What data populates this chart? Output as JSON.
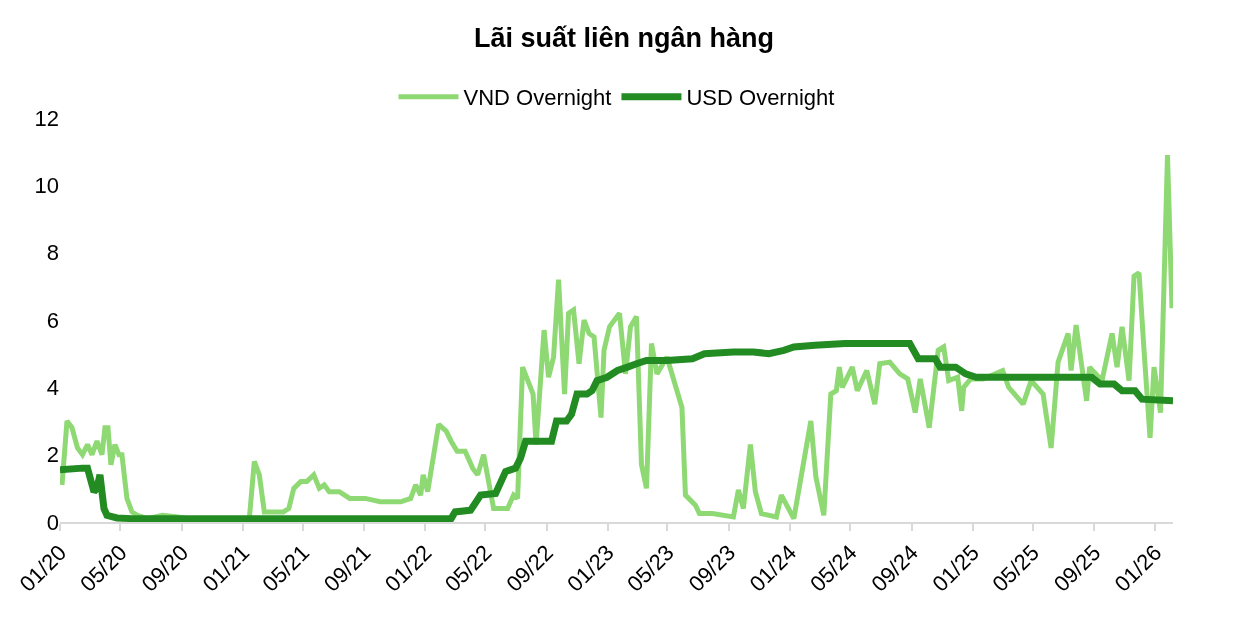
{
  "chart_data": {
    "type": "line",
    "title": "Lãi suất liên ngân hàng",
    "legend": "top",
    "grid": false,
    "marker": "none",
    "line_style": "solid",
    "xlim": [
      "2020-01-01",
      "2026-02-06"
    ],
    "ylim": [
      0,
      12
    ],
    "yticks": [
      0,
      2,
      4,
      6,
      8,
      10,
      12
    ],
    "xticks": [
      {
        "value": "2020-01-01",
        "label": "01/20"
      },
      {
        "value": "2020-05-01",
        "label": "05/20"
      },
      {
        "value": "2020-09-01",
        "label": "09/20"
      },
      {
        "value": "2021-01-01",
        "label": "01/21"
      },
      {
        "value": "2021-05-01",
        "label": "05/21"
      },
      {
        "value": "2021-09-01",
        "label": "09/21"
      },
      {
        "value": "2022-01-01",
        "label": "01/22"
      },
      {
        "value": "2022-05-01",
        "label": "05/22"
      },
      {
        "value": "2022-09-01",
        "label": "09/22"
      },
      {
        "value": "2023-01-01",
        "label": "01/23"
      },
      {
        "value": "2023-05-01",
        "label": "05/23"
      },
      {
        "value": "2023-09-01",
        "label": "09/23"
      },
      {
        "value": "2024-01-01",
        "label": "01/24"
      },
      {
        "value": "2024-05-01",
        "label": "05/24"
      },
      {
        "value": "2024-09-01",
        "label": "09/24"
      },
      {
        "value": "2025-01-01",
        "label": "01/25"
      },
      {
        "value": "2025-05-01",
        "label": "05/25"
      },
      {
        "value": "2025-09-01",
        "label": "09/25"
      },
      {
        "value": "2026-01-01",
        "label": "01/26"
      }
    ],
    "series": [
      {
        "name": "VND Overnight",
        "color": "#8fd974",
        "x": [
          "2020-01-05",
          "2020-01-15",
          "2020-01-25",
          "2020-02-05",
          "2020-02-15",
          "2020-02-25",
          "2020-03-05",
          "2020-03-15",
          "2020-03-25",
          "2020-03-31",
          "2020-04-06",
          "2020-04-12",
          "2020-04-20",
          "2020-04-28",
          "2020-05-04",
          "2020-05-14",
          "2020-05-24",
          "2020-06-04",
          "2020-06-24",
          "2020-07-24",
          "2020-08-24",
          "2020-09-14",
          "2020-10-24",
          "2021-01-14",
          "2021-01-24",
          "2021-02-03",
          "2021-02-13",
          "2021-03-03",
          "2021-03-23",
          "2021-04-03",
          "2021-04-13",
          "2021-04-27",
          "2021-05-09",
          "2021-05-23",
          "2021-06-03",
          "2021-06-13",
          "2021-06-23",
          "2021-07-13",
          "2021-08-03",
          "2021-09-03",
          "2021-10-03",
          "2021-11-13",
          "2021-12-03",
          "2021-12-13",
          "2021-12-23",
          "2021-12-28",
          "2022-01-06",
          "2022-01-28",
          "2022-02-12",
          "2022-02-22",
          "2022-03-06",
          "2022-03-22",
          "2022-04-06",
          "2022-04-16",
          "2022-04-28",
          "2022-05-18",
          "2022-06-15",
          "2022-06-27",
          "2022-07-05",
          "2022-07-15",
          "2022-08-05",
          "2022-08-11",
          "2022-08-27",
          "2022-09-05",
          "2022-09-15",
          "2022-09-25",
          "2022-10-07",
          "2022-10-15",
          "2022-10-25",
          "2022-11-05",
          "2022-11-15",
          "2022-11-25",
          "2022-12-05",
          "2022-12-19",
          "2022-12-25",
          "2023-01-05",
          "2023-01-25",
          "2023-02-06",
          "2023-02-16",
          "2023-02-28",
          "2023-03-10",
          "2023-03-20",
          "2023-03-30",
          "2023-04-10",
          "2023-04-30",
          "2023-05-16",
          "2023-05-30",
          "2023-06-06",
          "2023-06-26",
          "2023-07-04",
          "2023-07-30",
          "2023-09-10",
          "2023-09-20",
          "2023-09-30",
          "2023-10-14",
          "2023-10-24",
          "2023-11-05",
          "2023-12-05",
          "2023-12-15",
          "2024-01-09",
          "2024-02-12",
          "2024-02-22",
          "2024-03-09",
          "2024-03-23",
          "2024-04-03",
          "2024-04-09",
          "2024-04-15",
          "2024-05-05",
          "2024-05-15",
          "2024-06-03",
          "2024-06-19",
          "2024-06-29",
          "2024-07-19",
          "2024-08-08",
          "2024-08-24",
          "2024-09-08",
          "2024-09-18",
          "2024-10-06",
          "2024-10-24",
          "2024-11-04",
          "2024-11-14",
          "2024-12-02",
          "2024-12-10",
          "2024-12-14",
          "2024-12-28",
          "2025-01-22",
          "2025-03-02",
          "2025-03-14",
          "2025-04-12",
          "2025-04-28",
          "2025-05-22",
          "2025-06-07",
          "2025-06-21",
          "2025-07-11",
          "2025-07-17",
          "2025-07-27",
          "2025-08-17",
          "2025-08-23",
          "2025-09-17",
          "2025-10-07",
          "2025-10-17",
          "2025-10-27",
          "2025-11-10",
          "2025-11-20",
          "2025-11-30",
          "2025-12-10",
          "2025-12-22",
          "2025-12-30",
          "2026-01-12",
          "2026-01-26",
          "2026-02-04"
        ],
        "values": [
          1.1,
          3.0,
          2.8,
          2.2,
          2.0,
          2.3,
          2.0,
          2.4,
          2.0,
          2.8,
          2.8,
          1.7,
          2.3,
          2.0,
          2.0,
          0.7,
          0.3,
          0.2,
          0.1,
          0.2,
          0.15,
          0.1,
          0.1,
          0.1,
          1.8,
          1.4,
          0.3,
          0.3,
          0.3,
          0.4,
          1.0,
          1.2,
          1.2,
          1.4,
          1.0,
          1.1,
          0.9,
          0.9,
          0.7,
          0.7,
          0.6,
          0.6,
          0.7,
          1.1,
          0.8,
          1.4,
          0.9,
          2.9,
          2.7,
          2.4,
          2.1,
          2.1,
          1.6,
          1.4,
          2.0,
          0.4,
          0.4,
          0.8,
          0.7,
          4.6,
          3.8,
          2.3,
          5.7,
          4.3,
          4.9,
          7.2,
          3.8,
          6.2,
          6.3,
          4.7,
          6.0,
          5.6,
          5.5,
          3.1,
          5.1,
          5.8,
          6.2,
          4.4,
          5.8,
          6.1,
          1.7,
          1.0,
          5.3,
          4.4,
          4.9,
          4.1,
          3.4,
          0.8,
          0.5,
          0.25,
          0.25,
          0.15,
          0.95,
          0.4,
          2.3,
          0.9,
          0.25,
          0.15,
          0.8,
          0.1,
          3.0,
          1.35,
          0.2,
          3.8,
          3.9,
          4.6,
          4.0,
          4.6,
          3.9,
          4.5,
          3.5,
          4.7,
          4.75,
          4.4,
          4.25,
          3.25,
          4.25,
          2.8,
          5.1,
          5.2,
          4.2,
          4.3,
          3.3,
          4.0,
          4.25,
          4.25,
          4.5,
          4.0,
          3.5,
          4.2,
          3.8,
          2.2,
          4.75,
          5.6,
          4.5,
          5.85,
          3.6,
          4.6,
          4.2,
          5.6,
          4.6,
          5.8,
          4.2,
          7.3,
          7.4,
          5.1,
          2.5,
          4.6,
          3.25,
          10.9,
          6.35
        ]
      },
      {
        "name": "USD Overnight",
        "color": "#228b22",
        "x": [
          "2020-01-01",
          "2020-02-15",
          "2020-02-25",
          "2020-03-09",
          "2020-03-15",
          "2020-03-21",
          "2020-03-29",
          "2020-04-04",
          "2020-04-24",
          "2020-05-24",
          "2022-02-22",
          "2022-03-02",
          "2022-04-02",
          "2022-04-22",
          "2022-05-22",
          "2022-06-11",
          "2022-07-01",
          "2022-07-11",
          "2022-07-21",
          "2022-09-11",
          "2022-09-21",
          "2022-10-11",
          "2022-10-21",
          "2022-11-01",
          "2022-11-21",
          "2022-12-01",
          "2022-12-11",
          "2022-12-31",
          "2023-01-21",
          "2023-02-10",
          "2023-02-28",
          "2023-03-20",
          "2023-04-30",
          "2023-06-20",
          "2023-07-14",
          "2023-09-10",
          "2023-10-20",
          "2023-11-20",
          "2023-12-20",
          "2024-01-09",
          "2024-02-20",
          "2024-04-20",
          "2024-08-28",
          "2024-09-14",
          "2024-10-18",
          "2024-10-28",
          "2024-11-28",
          "2024-12-18",
          "2025-01-08",
          "2025-08-27",
          "2025-09-13",
          "2025-10-11",
          "2025-10-27",
          "2025-11-22",
          "2025-12-06",
          "2026-02-06"
        ],
        "values": [
          1.55,
          1.6,
          1.6,
          0.9,
          1.0,
          1.4,
          0.4,
          0.2,
          0.12,
          0.1,
          0.1,
          0.3,
          0.35,
          0.8,
          0.85,
          1.5,
          1.6,
          1.9,
          2.4,
          2.4,
          3.0,
          3.0,
          3.2,
          3.8,
          3.8,
          3.9,
          4.2,
          4.3,
          4.5,
          4.6,
          4.7,
          4.8,
          4.8,
          4.85,
          5.0,
          5.05,
          5.05,
          5.0,
          5.1,
          5.2,
          5.25,
          5.3,
          5.3,
          4.85,
          4.85,
          4.6,
          4.6,
          4.4,
          4.3,
          4.3,
          4.1,
          4.1,
          3.9,
          3.9,
          3.65,
          3.6
        ]
      }
    ]
  }
}
